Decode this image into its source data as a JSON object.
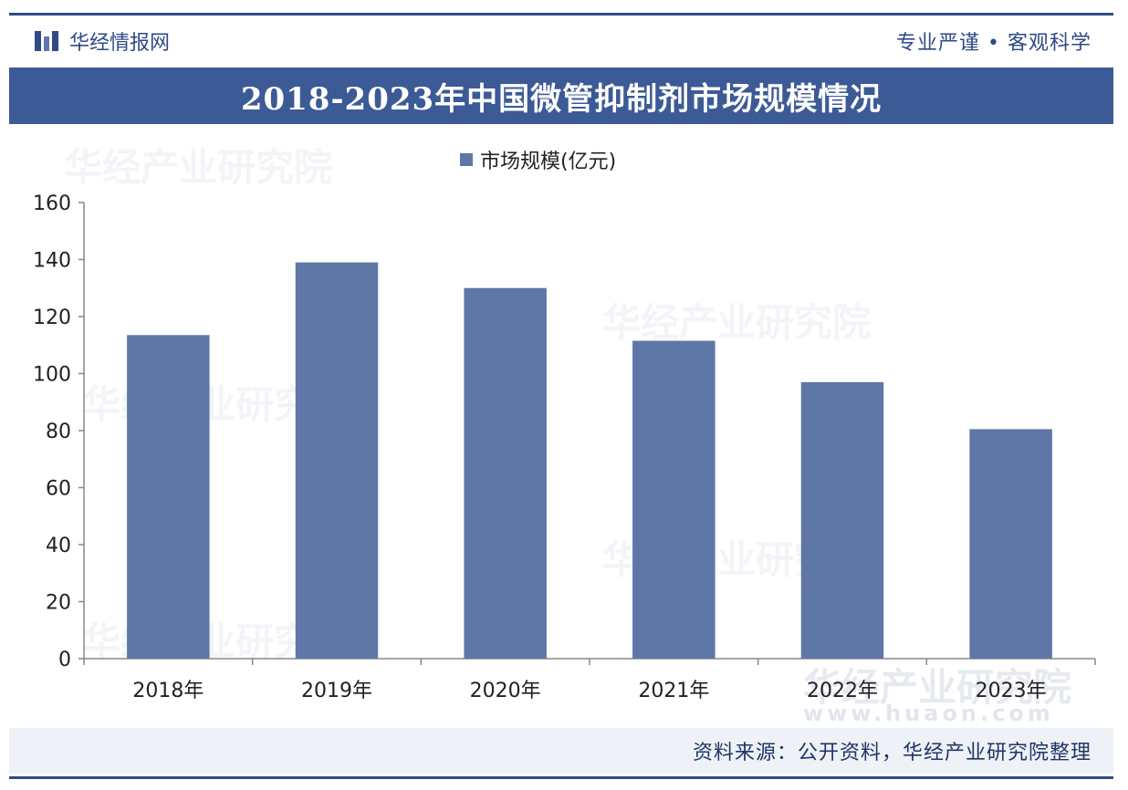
{
  "header": {
    "brand": "华经情报网",
    "slogan": "专业严谨 • 客观科学"
  },
  "title": "2018-2023年中国微管抑制剂市场规模情况",
  "footer": {
    "source": "资料来源：公开资料，华经产业研究院整理"
  },
  "watermark": {
    "text": "华经产业研究院",
    "site": "www.huaon.com"
  },
  "colors": {
    "bar": "#5f77a6",
    "title_bg": "#3c5a96",
    "accent": "#2f4a86"
  },
  "chart_data": {
    "type": "bar",
    "categories": [
      "2018年",
      "2019年",
      "2020年",
      "2021年",
      "2022年",
      "2023年"
    ],
    "series": [
      {
        "name": "市场规模(亿元)",
        "values": [
          113.5,
          139,
          130,
          111.5,
          97,
          80.5
        ]
      }
    ],
    "ylim": [
      0,
      160
    ],
    "yticks": [
      0,
      20,
      40,
      60,
      80,
      100,
      120,
      140,
      160
    ],
    "grid": false,
    "legend": "top-center"
  }
}
